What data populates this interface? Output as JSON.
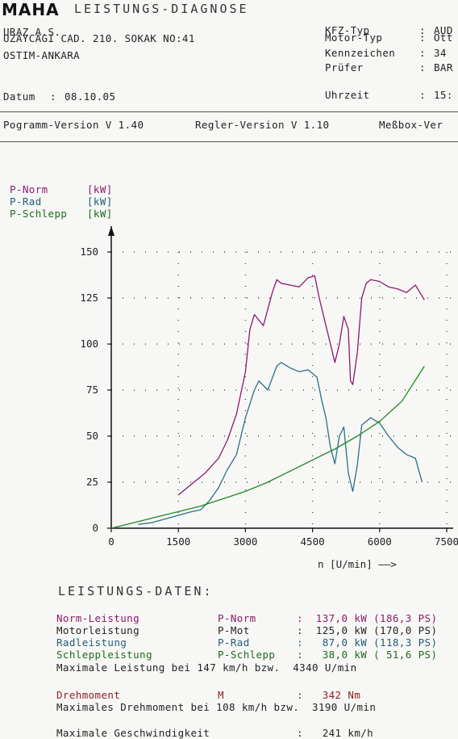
{
  "header": {
    "brand": "MAHA",
    "title": "LEISTUNGS-DIAGNOSE",
    "company_line1": "URAZ A.S.",
    "company_line2": "UZAYCAGI CAD. 210. SOKAK NO:41",
    "city": "OSTIM-ANKARA",
    "date_label": "Datum",
    "date_value": "08.10.05",
    "fields": [
      {
        "label": "KFZ-Typ",
        "value": "AUD"
      },
      {
        "label": "Motor-Typ",
        "value": "Ott"
      },
      {
        "label": "Kennzeichen",
        "value": "34"
      },
      {
        "label": "Prüfer",
        "value": "BAR"
      }
    ],
    "time_label": "Uhrzeit",
    "time_value": "15:"
  },
  "versions": {
    "program": "Pogramm-Version V 1.40",
    "regler": "Regler-Version V 1.10",
    "messbox": "Meßbox-Ver"
  },
  "legend": [
    {
      "label": "P-Norm",
      "unit": "[kW]",
      "color": "#8b1a6b"
    },
    {
      "label": "P-Rad",
      "unit": "[kW]",
      "color": "#2b6f8a"
    },
    {
      "label": "P-Schlepp",
      "unit": "[kW]",
      "color": "#1f8a1f"
    }
  ],
  "chart_data": {
    "type": "line",
    "xlabel": "n [U/min] ——>",
    "ylabel": "",
    "xlim": [
      0,
      7500
    ],
    "ylim": [
      0,
      150
    ],
    "x_ticks": [
      "0",
      "1500",
      "3000",
      "4500",
      "6000",
      "7500"
    ],
    "y_ticks": [
      "0",
      "25",
      "50",
      "75",
      "100",
      "125",
      "150"
    ],
    "grid": true,
    "series": [
      {
        "name": "P-Norm",
        "color": "#8b1a6b",
        "x": [
          1500,
          1800,
          2100,
          2400,
          2600,
          2800,
          3000,
          3100,
          3200,
          3400,
          3600,
          3700,
          3800,
          4000,
          4200,
          4400,
          4550,
          4650,
          4800,
          4900,
          5000,
          5100,
          5200,
          5300,
          5350,
          5400,
          5500,
          5600,
          5700,
          5800,
          6000,
          6200,
          6400,
          6600,
          6800,
          6950,
          7000
        ],
        "y": [
          18,
          24,
          30,
          38,
          48,
          62,
          85,
          108,
          116,
          110,
          128,
          135,
          133,
          132,
          131,
          136,
          137,
          125,
          110,
          100,
          90,
          100,
          115,
          108,
          80,
          78,
          95,
          125,
          133,
          135,
          134,
          131,
          130,
          128,
          132,
          126,
          124
        ]
      },
      {
        "name": "P-Rad",
        "color": "#2b6f8a",
        "x": [
          600,
          900,
          1200,
          1500,
          1800,
          2000,
          2200,
          2400,
          2600,
          2800,
          3000,
          3200,
          3300,
          3500,
          3700,
          3800,
          4000,
          4200,
          4400,
          4600,
          4700,
          4800,
          4900,
          5000,
          5100,
          5200,
          5300,
          5350,
          5400,
          5500,
          5600,
          5700,
          5800,
          6000,
          6200,
          6400,
          6600,
          6800,
          6950
        ],
        "y": [
          2,
          3,
          5,
          7,
          9,
          10,
          15,
          22,
          32,
          40,
          60,
          75,
          80,
          75,
          88,
          90,
          87,
          85,
          86,
          82,
          70,
          60,
          44,
          35,
          50,
          55,
          30,
          25,
          20,
          34,
          56,
          58,
          60,
          57,
          50,
          44,
          40,
          38,
          25
        ]
      },
      {
        "name": "P-Schlepp",
        "color": "#1f8a1f",
        "x": [
          0,
          500,
          1000,
          1500,
          2000,
          2500,
          3000,
          3500,
          4000,
          4500,
          5000,
          5500,
          6000,
          6500,
          7000
        ],
        "y": [
          0,
          3,
          6,
          9,
          12,
          16,
          20,
          25,
          31,
          37,
          43,
          50,
          58,
          69,
          88
        ]
      }
    ]
  },
  "results": {
    "section_title": "LEISTUNGS-DATEN:",
    "rows": [
      {
        "name": "Norm-Leistung",
        "sym": "P-Norm",
        "value": ":  137,0 kW (186,3 PS)",
        "color": "#8b1a6b"
      },
      {
        "name": "Motorleistung",
        "sym": "P-Mot",
        "value": ":  125,0 kW (170,0 PS)",
        "color": "#222222"
      },
      {
        "name": "Radleistung",
        "sym": "P-Rad",
        "value": ":   87,0 kW (118,3 PS)",
        "color": "#2b6f8a"
      },
      {
        "name": "Schleppleistung",
        "sym": "P-Schlepp",
        "value": ":   38,0 kW ( 51,6 PS)",
        "color": "#1f8a1f"
      }
    ],
    "max_power": "Maximale Leistung bei 147 km/h bzw.  4340 U/min",
    "torque_name": "Drehmoment",
    "torque_sym": "M",
    "torque_value": ":   342 Nm",
    "max_torque": "Maximales Drehmoment bei 108 km/h bzw.  3190 U/min",
    "max_speed_label": "Maximale Geschwindigkeit",
    "max_speed_value": ":   241 km/h"
  }
}
